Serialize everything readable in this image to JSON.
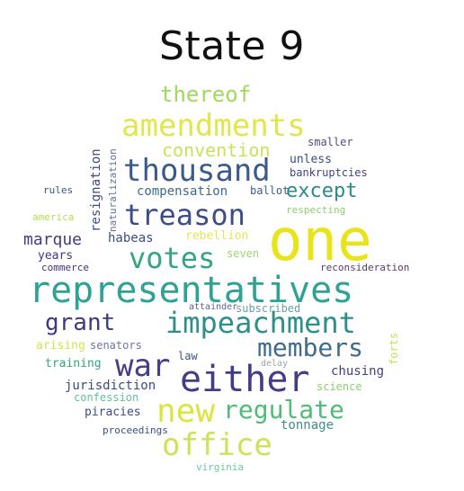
{
  "title": "State 9",
  "words": {
    "thereof": {
      "text": "thereof",
      "color": "#a2d95b"
    },
    "amendments": {
      "text": "amendments",
      "color": "#e3e64a"
    },
    "convention": {
      "text": "convention",
      "color": "#c7e35a"
    },
    "smaller": {
      "text": "smaller",
      "color": "#56487e"
    },
    "thousand": {
      "text": "thousand",
      "color": "#3a5a8a"
    },
    "unless": {
      "text": "unless",
      "color": "#3b4b86"
    },
    "bankruptcies": {
      "text": "bankruptcies",
      "color": "#414487"
    },
    "except": {
      "text": "except",
      "color": "#2a8c88"
    },
    "compensation": {
      "text": "compensation",
      "color": "#3b6b8c"
    },
    "ballot": {
      "text": "ballot",
      "color": "#3a5d8d"
    },
    "rules": {
      "text": "rules",
      "color": "#3b528b"
    },
    "respecting": {
      "text": "respecting",
      "color": "#8fd16a"
    },
    "treason": {
      "text": "treason",
      "color": "#3d4d8a"
    },
    "america": {
      "text": "america",
      "color": "#b5de4f"
    },
    "one": {
      "text": "one",
      "color": "#e8e419"
    },
    "marque": {
      "text": "marque",
      "color": "#443a83"
    },
    "habeas": {
      "text": "habeas",
      "color": "#3b4c8a"
    },
    "rebellion": {
      "text": "rebellion",
      "color": "#e6e55a"
    },
    "votes": {
      "text": "votes",
      "color": "#34a57f"
    },
    "years": {
      "text": "years",
      "color": "#48367a"
    },
    "seven": {
      "text": "seven",
      "color": "#9ed76a"
    },
    "commerce": {
      "text": "commerce",
      "color": "#48307a"
    },
    "reconsideration": {
      "text": "reconsideration",
      "color": "#56396d"
    },
    "representatives": {
      "text": "representatives",
      "color": "#2ea394"
    },
    "subscribed": {
      "text": "subscribed",
      "color": "#6aa0a8"
    },
    "attainder": {
      "text": "attainder",
      "color": "#5b5f8a"
    },
    "grant": {
      "text": "grant",
      "color": "#3d3b7d"
    },
    "impeachment": {
      "text": "impeachment",
      "color": "#2d8f8a"
    },
    "arising": {
      "text": "arising",
      "color": "#d8e34a"
    },
    "senators": {
      "text": "senators",
      "color": "#6b74a0"
    },
    "members": {
      "text": "members",
      "color": "#3e6b8e"
    },
    "law": {
      "text": "law",
      "color": "#41508a"
    },
    "delay": {
      "text": "delay",
      "color": "#9aa6b0"
    },
    "training": {
      "text": "training",
      "color": "#32a57d"
    },
    "war": {
      "text": "war",
      "color": "#453f84"
    },
    "either": {
      "text": "either",
      "color": "#433c86"
    },
    "chusing": {
      "text": "chusing",
      "color": "#443e80"
    },
    "jurisdiction": {
      "text": "jurisdiction",
      "color": "#3a4b82"
    },
    "science": {
      "text": "science",
      "color": "#88d36b"
    },
    "confession": {
      "text": "confession",
      "color": "#5ec497"
    },
    "new": {
      "text": "new",
      "color": "#dde53d"
    },
    "regulate": {
      "text": "regulate",
      "color": "#4fbd76"
    },
    "piracies": {
      "text": "piracies",
      "color": "#3b4c8a"
    },
    "tonnage": {
      "text": "tonnage",
      "color": "#3d8b8a"
    },
    "proceedings": {
      "text": "proceedings",
      "color": "#3a4f88"
    },
    "office": {
      "text": "office",
      "color": "#cfe157"
    },
    "virginia": {
      "text": "virginia",
      "color": "#6ac9a0"
    },
    "resignation": {
      "text": "resignation",
      "color": "#3e4a87"
    },
    "naturalization": {
      "text": "naturalization",
      "color": "#5c6e95"
    },
    "forts": {
      "text": "forts",
      "color": "#c6df58"
    }
  }
}
